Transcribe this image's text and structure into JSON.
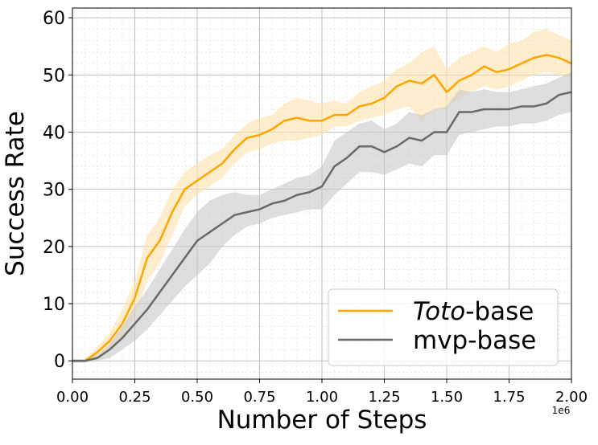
{
  "chart_data": {
    "type": "line",
    "xlabel": "Number of Steps",
    "ylabel": "Success Rate",
    "x_offset_label": "1e6",
    "x": [
      0,
      50000,
      100000,
      150000,
      200000,
      250000,
      300000,
      350000,
      400000,
      450000,
      500000,
      550000,
      600000,
      650000,
      700000,
      750000,
      800000,
      850000,
      900000,
      950000,
      1000000,
      1050000,
      1100000,
      1150000,
      1200000,
      1250000,
      1300000,
      1350000,
      1400000,
      1450000,
      1500000,
      1550000,
      1600000,
      1650000,
      1700000,
      1750000,
      1800000,
      1850000,
      1900000,
      1950000,
      2000000
    ],
    "series": [
      {
        "name": "Toto-base",
        "color": "#ffa500",
        "band_color": "#ffe2ad",
        "values": [
          0,
          0,
          1.5,
          3.5,
          6.5,
          11,
          18,
          21,
          26,
          30,
          31.5,
          33,
          34.5,
          37,
          39,
          39.5,
          40.5,
          42,
          42.5,
          42,
          42,
          43,
          43,
          44.5,
          45,
          46,
          48,
          49,
          48.5,
          50,
          47,
          49,
          50,
          51.5,
          50.5,
          51,
          52,
          53,
          53.5,
          53,
          52
        ],
        "lower": [
          -0.3,
          -0.3,
          0.5,
          2,
          4,
          8,
          14,
          17,
          22,
          27,
          29,
          30.5,
          32,
          34.5,
          36.5,
          37,
          38,
          38.5,
          38.5,
          39,
          39.5,
          41,
          41,
          42,
          42.5,
          43,
          44,
          44.5,
          42,
          44,
          44,
          46,
          47,
          48,
          47.5,
          48,
          49,
          50,
          50.5,
          50,
          49.5
        ],
        "upper": [
          0.3,
          0.3,
          2.5,
          5,
          9,
          14,
          22,
          25,
          30,
          33,
          34.5,
          36,
          37,
          39.5,
          41.5,
          42.5,
          43,
          45,
          46,
          45.5,
          45,
          45.5,
          45,
          47,
          48,
          49,
          51,
          52,
          54,
          55,
          51,
          53,
          54,
          55,
          54,
          55.5,
          56,
          57.5,
          58,
          57,
          56
        ]
      },
      {
        "name": "mvp-base",
        "color": "#696969",
        "band_color": "#c8c8c8",
        "values": [
          0,
          0,
          0.5,
          2,
          4,
          6.5,
          9,
          12,
          15,
          18,
          21,
          22.5,
          24,
          25.5,
          26,
          26.5,
          27.5,
          28,
          29,
          29.5,
          30.5,
          34,
          35.5,
          37.5,
          37.5,
          36.5,
          37.5,
          39,
          38.5,
          40,
          40,
          43.5,
          43.5,
          44,
          44,
          44,
          44.5,
          44.5,
          45,
          46.5,
          47
        ],
        "lower": [
          -0.3,
          -0.3,
          0,
          0.5,
          2,
          3.5,
          5.5,
          8,
          10.5,
          13,
          15,
          17,
          20,
          22,
          23.5,
          24,
          25,
          25.5,
          26,
          26.5,
          26.5,
          29,
          31,
          33,
          33,
          32.5,
          33.5,
          34.5,
          34,
          36,
          36,
          39.5,
          40,
          40.5,
          41,
          41,
          41.5,
          41.5,
          42,
          43,
          43.5
        ],
        "upper": [
          0.3,
          0.3,
          1,
          3,
          6,
          9.5,
          12.5,
          16,
          19.5,
          23,
          26,
          28,
          29,
          29.5,
          29,
          29,
          30,
          31,
          32,
          32.5,
          34,
          38.5,
          40,
          41.5,
          42,
          40.5,
          41.5,
          43.5,
          43,
          44,
          44.5,
          47.5,
          47,
          47.5,
          47,
          47,
          47.5,
          48,
          48.5,
          49.5,
          50.5
        ]
      }
    ],
    "xlim": [
      0,
      2000000
    ],
    "xticks": [
      {
        "value": 0,
        "label": "0.00"
      },
      {
        "value": 250000,
        "label": "0.25"
      },
      {
        "value": 500000,
        "label": "0.50"
      },
      {
        "value": 750000,
        "label": "0.75"
      },
      {
        "value": 1000000,
        "label": "1.00"
      },
      {
        "value": 1250000,
        "label": "1.25"
      },
      {
        "value": 1500000,
        "label": "1.50"
      },
      {
        "value": 1750000,
        "label": "1.75"
      },
      {
        "value": 2000000,
        "label": "2.00"
      }
    ],
    "ylim": [
      -3.2,
      61.7
    ],
    "yticks": [
      0,
      10,
      20,
      30,
      40,
      50,
      60
    ],
    "grid": true,
    "minor_grid": true,
    "legend_position": "lower right"
  }
}
